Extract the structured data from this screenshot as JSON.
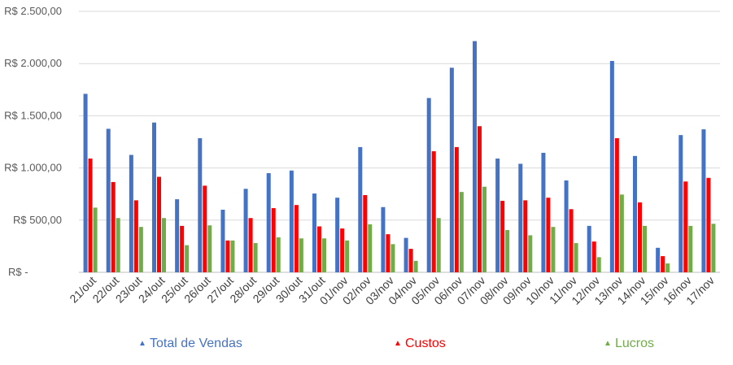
{
  "chart_data": {
    "type": "bar",
    "categories": [
      "21/out",
      "22/out",
      "23/out",
      "24/out",
      "25/out",
      "26/out",
      "27/out",
      "28/out",
      "29/out",
      "30/out",
      "31/out",
      "01/nov",
      "02/nov",
      "03/nov",
      "04/nov",
      "05/nov",
      "06/nov",
      "07/nov",
      "08/nov",
      "09/nov",
      "10/nov",
      "11/nov",
      "12/nov",
      "13/nov",
      "14/nov",
      "15/nov",
      "16/nov",
      "17/nov"
    ],
    "series": [
      {
        "name": "Total de Vendas",
        "color": "#4472C4",
        "values": [
          1710,
          1375,
          1125,
          1435,
          700,
          1285,
          600,
          800,
          950,
          975,
          755,
          715,
          1200,
          625,
          330,
          1670,
          1960,
          2215,
          1090,
          1040,
          1145,
          880,
          445,
          2025,
          1115,
          235,
          1315,
          1370
        ]
      },
      {
        "name": "Custos",
        "color": "#FF0000",
        "values": [
          1090,
          865,
          690,
          915,
          445,
          830,
          305,
          520,
          615,
          645,
          440,
          420,
          740,
          365,
          225,
          1160,
          1200,
          1400,
          685,
          690,
          715,
          605,
          295,
          1285,
          670,
          155,
          870,
          905
        ]
      },
      {
        "name": "Lucros",
        "color": "#70AD47",
        "values": [
          620,
          520,
          435,
          520,
          260,
          450,
          305,
          280,
          335,
          325,
          325,
          305,
          460,
          270,
          110,
          520,
          770,
          820,
          405,
          355,
          435,
          280,
          145,
          745,
          445,
          85,
          445,
          465
        ]
      }
    ],
    "yticks": [
      "R$ -",
      "R$ 500,00",
      "R$ 1.000,00",
      "R$ 1.500,00",
      "R$ 2.000,00",
      "R$ 2.500,00"
    ],
    "ylim": [
      0,
      2500
    ],
    "grid": true,
    "legend_position": "bottom",
    "legend_symbol": "▲"
  }
}
